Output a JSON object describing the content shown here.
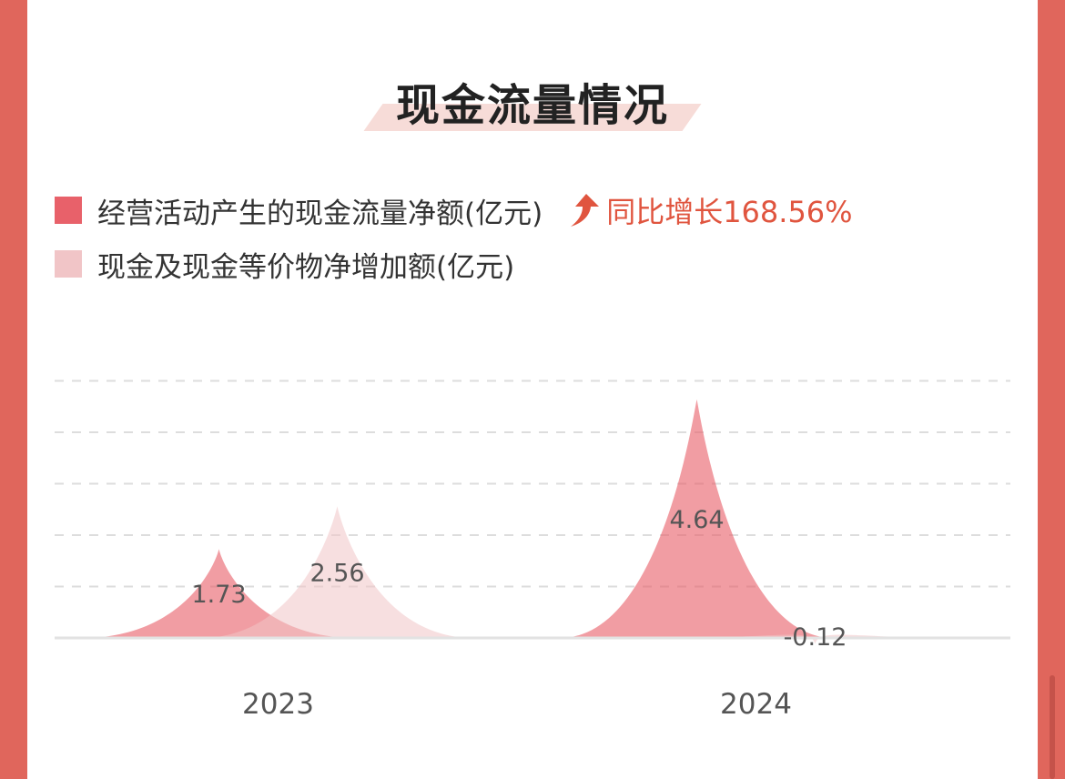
{
  "header": {
    "title": "现金流量情况"
  },
  "legend": [
    {
      "label": "经营活动产生的现金流量净额(亿元)",
      "color": "#e8616a"
    },
    {
      "label": "现金及现金等价物净增加额(亿元)",
      "color": "#f1c5c7"
    }
  ],
  "growth": {
    "label": "同比增长168.56%",
    "icon": "up-arrow-icon",
    "color": "#e0553f"
  },
  "chart_data": {
    "type": "area",
    "categories": [
      "2023",
      "2024"
    ],
    "series": [
      {
        "name": "经营活动产生的现金流量净额(亿元)",
        "values": [
          1.73,
          4.64
        ],
        "labels": [
          "1.73",
          "4.64"
        ],
        "color": "#e8616a"
      },
      {
        "name": "现金及现金等价物净增加额(亿元)",
        "values": [
          2.56,
          -0.12
        ],
        "labels": [
          "2.56",
          "-0.12"
        ],
        "color": "#f1c5c7"
      }
    ],
    "grid": true,
    "legend_position": "top-left"
  },
  "colors": {
    "background": "#e0665c",
    "card": "#ffffff",
    "accent": "#e0553f"
  }
}
